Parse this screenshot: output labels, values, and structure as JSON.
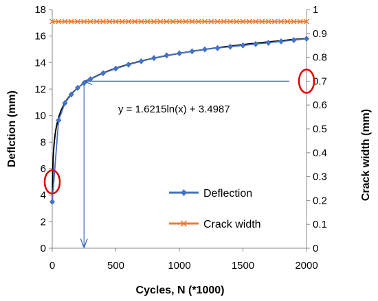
{
  "chart_data": {
    "type": "line",
    "x": [
      0,
      50,
      100,
      150,
      200,
      250,
      300,
      400,
      500,
      600,
      700,
      800,
      900,
      1000,
      1100,
      1200,
      1300,
      1400,
      1500,
      1600,
      1700,
      1800,
      1900,
      2000
    ],
    "xlabel": "Cycles, N (*1000)",
    "ylabel": "Deflction (mm)",
    "y2label": "Crack width (mm)",
    "xlim": [
      0,
      2000
    ],
    "ylim": [
      0,
      18
    ],
    "y2lim": [
      0,
      1
    ],
    "xticks": [
      "0",
      "500",
      "1000",
      "1500",
      "2000"
    ],
    "yticks": [
      "0",
      "2",
      "4",
      "6",
      "8",
      "10",
      "12",
      "14",
      "16",
      "18"
    ],
    "y2ticks": [
      "0",
      "0.1",
      "0.2",
      "0.3",
      "0.4",
      "0.5",
      "0.6",
      "0.7",
      "0.8",
      "0.9",
      "1"
    ],
    "grid": false,
    "legend_position": "lower-right",
    "series": [
      {
        "name": "Deflection",
        "axis": "left",
        "color": "#4472C4",
        "marker": "diamond",
        "x": [
          0,
          50,
          100,
          150,
          200,
          250,
          300,
          400,
          500,
          600,
          700,
          800,
          900,
          1000,
          1100,
          1200,
          1300,
          1400,
          1500,
          1600,
          1700,
          1800,
          1900,
          2000
        ],
        "values": [
          3.5,
          9.65,
          10.95,
          11.6,
          12.1,
          12.45,
          12.75,
          13.2,
          13.55,
          13.85,
          14.1,
          14.35,
          14.55,
          14.7,
          14.85,
          15.0,
          15.1,
          15.2,
          15.3,
          15.4,
          15.5,
          15.6,
          15.7,
          15.8
        ]
      },
      {
        "name": "Crack width",
        "axis": "right",
        "color": "#ED7D31",
        "marker": "x",
        "x": [
          0,
          50,
          100,
          150,
          200,
          250,
          300,
          350,
          400,
          450,
          500,
          550,
          600,
          650,
          700,
          750,
          800,
          850,
          900,
          950,
          1000,
          1050,
          1100,
          1150,
          1200,
          1250,
          1300,
          1350,
          1400,
          1450,
          1500,
          1550,
          1600,
          1650,
          1700,
          1750,
          1800,
          1850,
          1900,
          1950,
          2000
        ],
        "values": [
          0.95,
          0.95,
          0.95,
          0.95,
          0.95,
          0.95,
          0.95,
          0.95,
          0.95,
          0.95,
          0.95,
          0.95,
          0.95,
          0.95,
          0.95,
          0.95,
          0.95,
          0.95,
          0.95,
          0.95,
          0.95,
          0.95,
          0.95,
          0.95,
          0.95,
          0.95,
          0.95,
          0.95,
          0.95,
          0.95,
          0.95,
          0.95,
          0.95,
          0.95,
          0.95,
          0.95,
          0.95,
          0.95,
          0.95,
          0.95,
          0.95
        ]
      }
    ],
    "trendline": {
      "type": "logarithmic",
      "label": "y = 1.6215ln(x) + 3.4987",
      "a": 1.6215,
      "b": 3.4987,
      "color": "#000000"
    },
    "annotations": [
      {
        "type": "guide-line",
        "color": "#2E5FB0",
        "at_x": 250,
        "at_y2": 0.7
      },
      {
        "type": "circle",
        "color": "#E00000",
        "axis": "left",
        "at_x": 0,
        "at_y": 5
      },
      {
        "type": "circle",
        "color": "#E00000",
        "axis": "right",
        "at_x": 2000,
        "at_y2": 0.7
      }
    ]
  }
}
